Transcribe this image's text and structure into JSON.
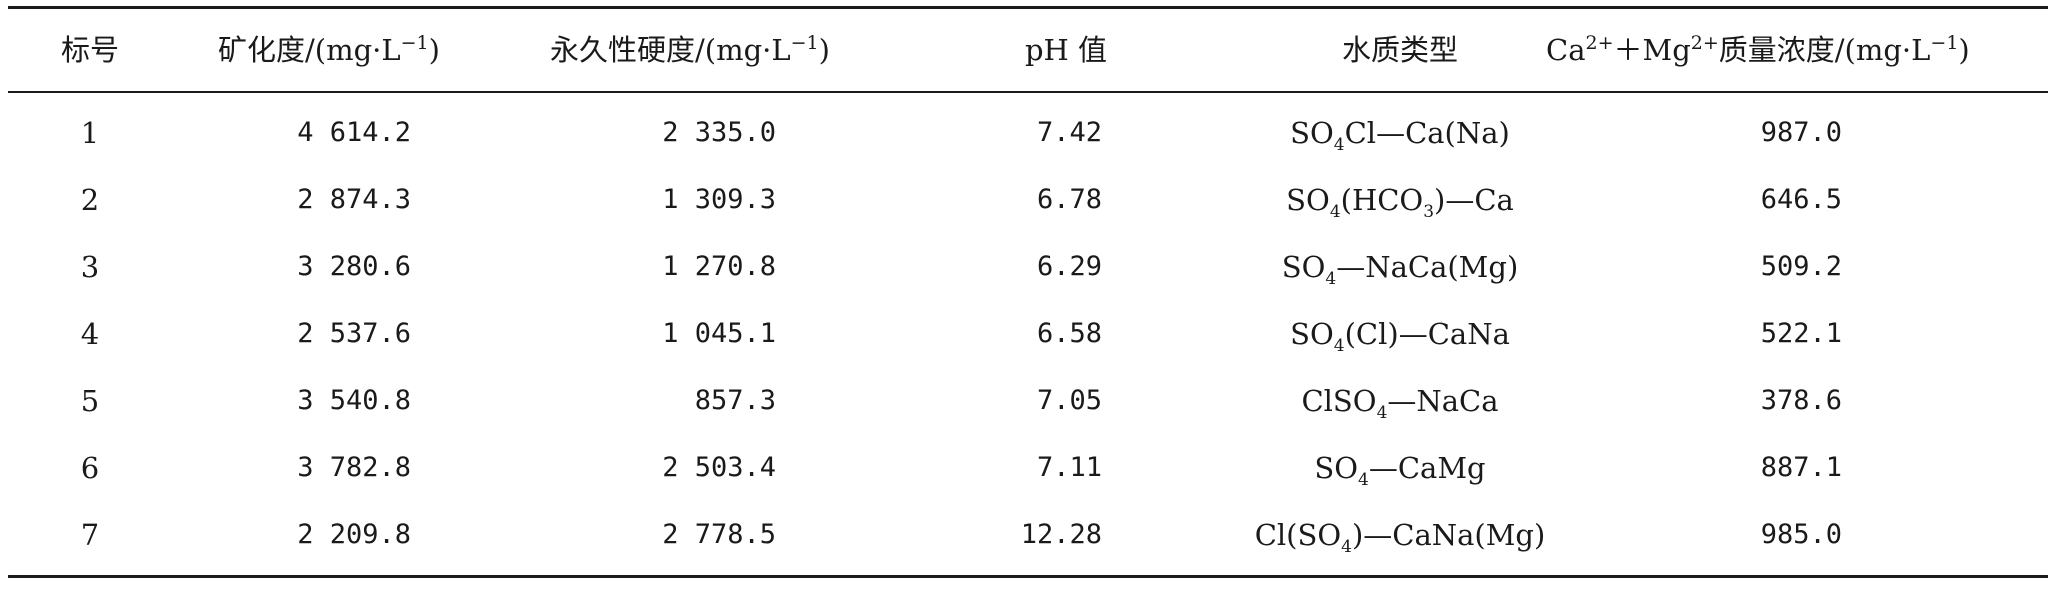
{
  "headers": {
    "id": "标号",
    "mineralization": "矿化度/(mg·L",
    "mineralization_exp": "−1",
    "mineralization_close": ")",
    "hardness": "永久性硬度/(mg·L",
    "hardness_exp": "−1",
    "hardness_close": ")",
    "ph": "pH 值",
    "water_type": "水质类型",
    "ca_prefix": "Ca",
    "ca_charge": "2+",
    "plus_mg": "＋Mg",
    "mg_charge": "2+",
    "conc_text": "质量浓度/(mg·L",
    "conc_exp": "−1",
    "conc_close": ")"
  },
  "rows": [
    {
      "id": "1",
      "mineralization": "4 614.2",
      "hardness": "2 335.0",
      "ph": "7.42",
      "type_a": "SO",
      "type_sub1": "4",
      "type_b": "Cl—Ca(Na)",
      "type_sub2": "",
      "type_c": "",
      "conc": "987.0"
    },
    {
      "id": "2",
      "mineralization": "2 874.3",
      "hardness": "1 309.3",
      "ph": "6.78",
      "type_a": "SO",
      "type_sub1": "4",
      "type_b": "(HCO",
      "type_sub2": "3",
      "type_c": ")—Ca",
      "conc": "646.5"
    },
    {
      "id": "3",
      "mineralization": "3 280.6",
      "hardness": "1 270.8",
      "ph": "6.29",
      "type_a": "SO",
      "type_sub1": "4",
      "type_b": "—NaCa(Mg)",
      "type_sub2": "",
      "type_c": "",
      "conc": "509.2"
    },
    {
      "id": "4",
      "mineralization": "2 537.6",
      "hardness": "1 045.1",
      "ph": "6.58",
      "type_a": "SO",
      "type_sub1": "4",
      "type_b": "(Cl)—CaNa",
      "type_sub2": "",
      "type_c": "",
      "conc": "522.1"
    },
    {
      "id": "5",
      "mineralization": "3 540.8",
      "hardness": "857.3",
      "ph": "7.05",
      "type_a": "ClSO",
      "type_sub1": "4",
      "type_b": "—NaCa",
      "type_sub2": "",
      "type_c": "",
      "conc": "378.6"
    },
    {
      "id": "6",
      "mineralization": "3 782.8",
      "hardness": "2 503.4",
      "ph": "7.11",
      "type_a": "SO",
      "type_sub1": "4",
      "type_b": "—CaMg",
      "type_sub2": "",
      "type_c": "",
      "conc": "887.1"
    },
    {
      "id": "7",
      "mineralization": "2 209.8",
      "hardness": "2 778.5",
      "ph": "12.28",
      "type_a": "Cl(SO",
      "type_sub1": "4",
      "type_b": ")—CaNa(Mg)",
      "type_sub2": "",
      "type_c": "",
      "conc": "985.0"
    }
  ]
}
